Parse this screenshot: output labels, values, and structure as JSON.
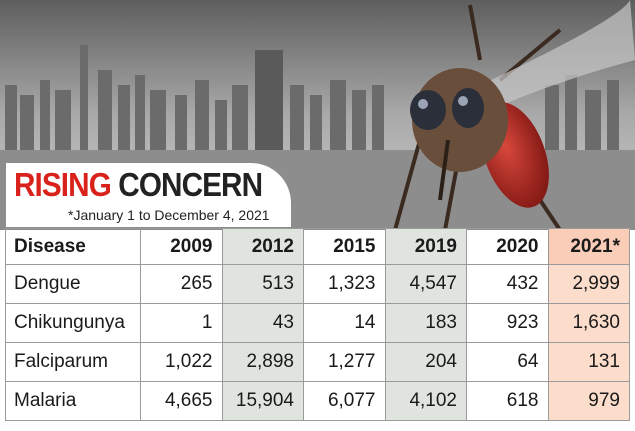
{
  "header": {
    "title_part1": "RISING",
    "title_part2": "CONCERN",
    "subtitle": "*January 1 to December 4, 2021"
  },
  "table": {
    "columns": [
      "Disease",
      "2009",
      "2012",
      "2015",
      "2019",
      "2020",
      "2021*"
    ],
    "rows": [
      [
        "Dengue",
        "265",
        "513",
        "1,323",
        "4,547",
        "432",
        "2,999"
      ],
      [
        "Chikungunya",
        "1",
        "43",
        "14",
        "183",
        "923",
        "1,630"
      ],
      [
        "Falciparum",
        "1,022",
        "2,898",
        "1,277",
        "204",
        "64",
        "131"
      ],
      [
        "Malaria",
        "4,665",
        "15,904",
        "6,077",
        "4,102",
        "618",
        "979"
      ]
    ]
  }
}
